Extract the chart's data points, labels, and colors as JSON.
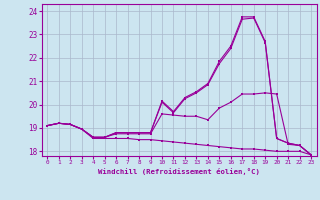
{
  "xlabel": "Windchill (Refroidissement éolien,°C)",
  "background_color": "#cce5f0",
  "grid_color": "#aab8cc",
  "line_color": "#990099",
  "xlim": [
    -0.5,
    23.5
  ],
  "ylim": [
    17.8,
    24.3
  ],
  "yticks": [
    18,
    19,
    20,
    21,
    22,
    23,
    24
  ],
  "xticks": [
    0,
    1,
    2,
    3,
    4,
    5,
    6,
    7,
    8,
    9,
    10,
    11,
    12,
    13,
    14,
    15,
    16,
    17,
    18,
    19,
    20,
    21,
    22,
    23
  ],
  "lines": [
    [
      19.1,
      19.2,
      19.15,
      18.95,
      18.55,
      18.55,
      18.55,
      18.55,
      18.5,
      18.5,
      18.45,
      18.4,
      18.35,
      18.3,
      18.25,
      18.2,
      18.15,
      18.1,
      18.1,
      18.05,
      18.0,
      18.0,
      18.0,
      17.85
    ],
    [
      19.1,
      19.2,
      19.15,
      18.95,
      18.6,
      18.6,
      18.75,
      18.75,
      18.75,
      18.75,
      19.6,
      19.55,
      19.5,
      19.5,
      19.35,
      19.85,
      20.1,
      20.45,
      20.45,
      20.5,
      20.45,
      18.3,
      18.25,
      17.85
    ],
    [
      19.1,
      19.2,
      19.15,
      18.95,
      18.6,
      18.6,
      18.8,
      18.8,
      18.8,
      18.8,
      20.1,
      19.65,
      20.25,
      20.5,
      20.85,
      21.75,
      22.4,
      23.65,
      23.7,
      22.65,
      18.55,
      18.35,
      18.25,
      17.85
    ],
    [
      19.1,
      19.2,
      19.15,
      18.95,
      18.6,
      18.6,
      18.8,
      18.8,
      18.8,
      18.8,
      20.15,
      19.7,
      20.3,
      20.55,
      20.9,
      21.85,
      22.5,
      23.75,
      23.75,
      22.7,
      18.55,
      18.35,
      18.25,
      17.85
    ]
  ]
}
